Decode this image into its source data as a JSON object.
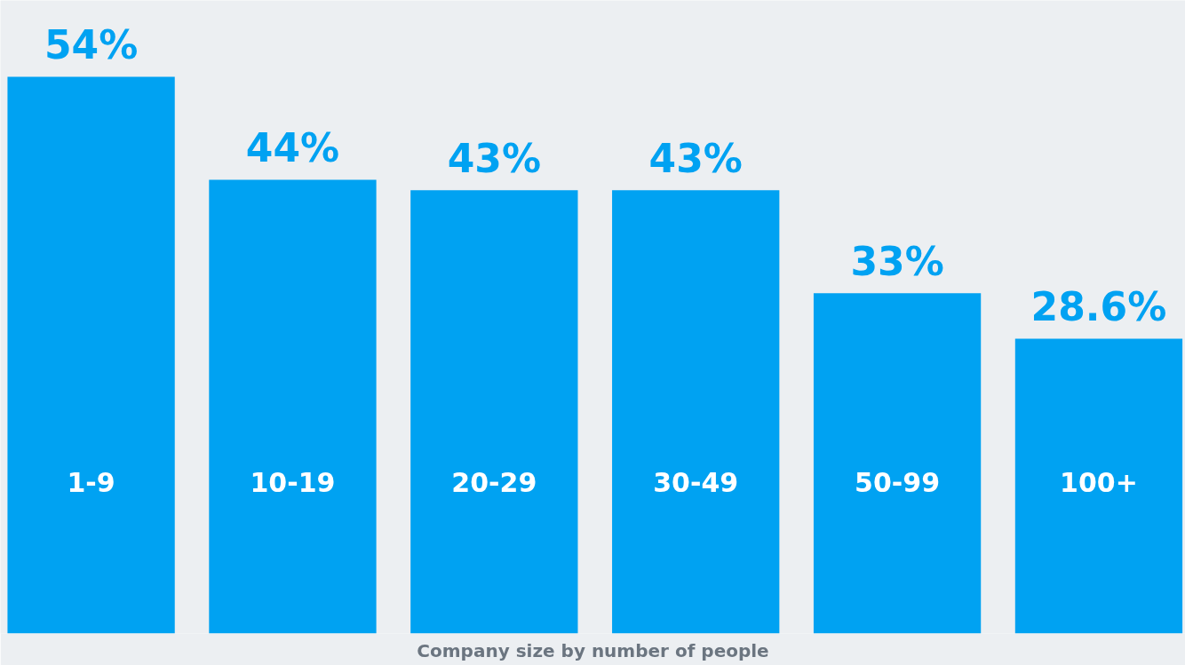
{
  "chart_data": {
    "type": "bar",
    "xlabel": "Company size by number of people",
    "categories": [
      "1-9",
      "10-19",
      "20-29",
      "30-49",
      "50-99",
      "100+"
    ],
    "values": [
      54,
      44,
      43,
      43,
      33,
      28.6
    ],
    "value_labels": [
      "54%",
      "44%",
      "43%",
      "43%",
      "33%",
      "28.6%"
    ],
    "color": "#00a2f2",
    "ylim": [
      0,
      61.4
    ],
    "tick_labels": false,
    "grid": false
  }
}
